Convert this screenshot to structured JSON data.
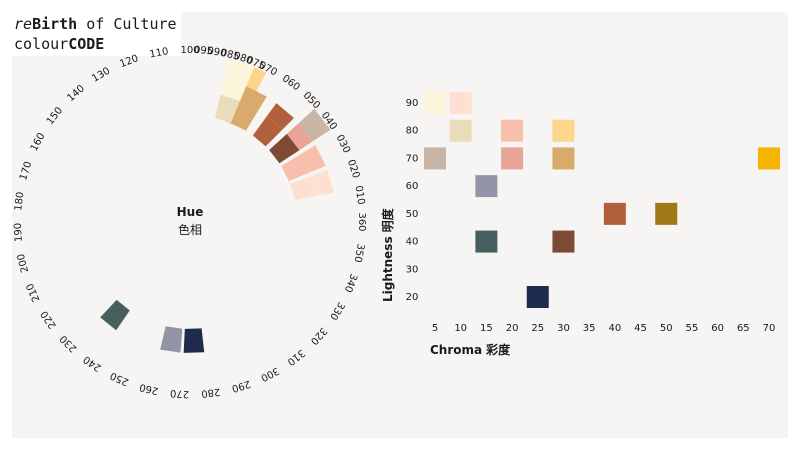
{
  "brand": {
    "re": "re",
    "birth": "Birth",
    "of_culture": " of Culture",
    "colour": "colour",
    "code": "CODE"
  },
  "chart_data": [
    {
      "type": "radial-hue-wheel",
      "title_en": "Hue",
      "title_zh": "色相",
      "hue_ticks": [
        "010",
        "020",
        "030",
        "040",
        "050",
        "060",
        "070",
        "075",
        "080",
        "085",
        "090",
        "095",
        "100",
        "110",
        "120",
        "130",
        "140",
        "150",
        "160",
        "170",
        "180",
        "190",
        "200",
        "210",
        "220",
        "230",
        "240",
        "250",
        "260",
        "270",
        "280",
        "290",
        "300",
        "310",
        "320",
        "330",
        "340",
        "350",
        "360"
      ],
      "segments": [
        {
          "hue": 75,
          "color": "#a07818",
          "band": 1
        },
        {
          "hue": 75,
          "color": "#f5b400",
          "band": 2
        },
        {
          "hue": 75,
          "color": "#fcd68b",
          "band": 3
        },
        {
          "hue": 80,
          "color": "#eadcb8",
          "band": 1
        },
        {
          "hue": 80,
          "color": "#fdf6dc",
          "band": 2
        },
        {
          "hue": 80,
          "color": "#fdf6dc",
          "band": 3
        },
        {
          "hue": 70,
          "color": "#d8ab6c",
          "band": 1
        },
        {
          "hue": 70,
          "color": "#d8ab6c",
          "band": 2
        },
        {
          "hue": 55,
          "color": "#b0603a",
          "band": 1
        },
        {
          "hue": 55,
          "color": "#b0603a",
          "band": 2
        },
        {
          "hue": 42,
          "color": "#7d4a35",
          "band": 1
        },
        {
          "hue": 42,
          "color": "#e6a595",
          "band": 2
        },
        {
          "hue": 42,
          "color": "#c9b5a5",
          "band": 3
        },
        {
          "hue": 30,
          "color": "#f8bfac",
          "band": 1
        },
        {
          "hue": 30,
          "color": "#f8bfac",
          "band": 2
        },
        {
          "hue": 18,
          "color": "#fde0d2",
          "band": 1
        },
        {
          "hue": 18,
          "color": "#fde0d2",
          "band": 2
        },
        {
          "hue": 236,
          "color": "#45605e",
          "band": 1
        },
        {
          "hue": 265,
          "color": "#9494a8",
          "band": 1
        },
        {
          "hue": 275,
          "color": "#1f2b4d",
          "band": 1
        }
      ]
    },
    {
      "type": "scatter",
      "xlabel_en": "Chroma",
      "xlabel_zh": "彩度",
      "ylabel_en": "Lightness",
      "ylabel_zh": "明度",
      "x_ticks": [
        5,
        10,
        15,
        20,
        25,
        30,
        35,
        40,
        45,
        50,
        55,
        60,
        65,
        70
      ],
      "y_ticks": [
        20,
        30,
        40,
        50,
        60,
        70,
        80,
        90
      ],
      "xlim": [
        5,
        70
      ],
      "ylim": [
        20,
        90
      ],
      "points": [
        {
          "x": 5,
          "y": 90,
          "color": "#fdf6dc"
        },
        {
          "x": 10,
          "y": 90,
          "color": "#fde0d2"
        },
        {
          "x": 10,
          "y": 80,
          "color": "#eadcb8"
        },
        {
          "x": 20,
          "y": 80,
          "color": "#f8bfac"
        },
        {
          "x": 30,
          "y": 80,
          "color": "#fcd68b"
        },
        {
          "x": 5,
          "y": 70,
          "color": "#c9b5a5"
        },
        {
          "x": 20,
          "y": 70,
          "color": "#e6a595"
        },
        {
          "x": 30,
          "y": 70,
          "color": "#d8ab6c"
        },
        {
          "x": 70,
          "y": 70,
          "color": "#f5b400"
        },
        {
          "x": 15,
          "y": 60,
          "color": "#9494a8"
        },
        {
          "x": 40,
          "y": 50,
          "color": "#b0603a"
        },
        {
          "x": 50,
          "y": 50,
          "color": "#a07818"
        },
        {
          "x": 15,
          "y": 40,
          "color": "#45605e"
        },
        {
          "x": 30,
          "y": 40,
          "color": "#7d4a35"
        },
        {
          "x": 25,
          "y": 20,
          "color": "#1f2b4d"
        }
      ]
    }
  ]
}
